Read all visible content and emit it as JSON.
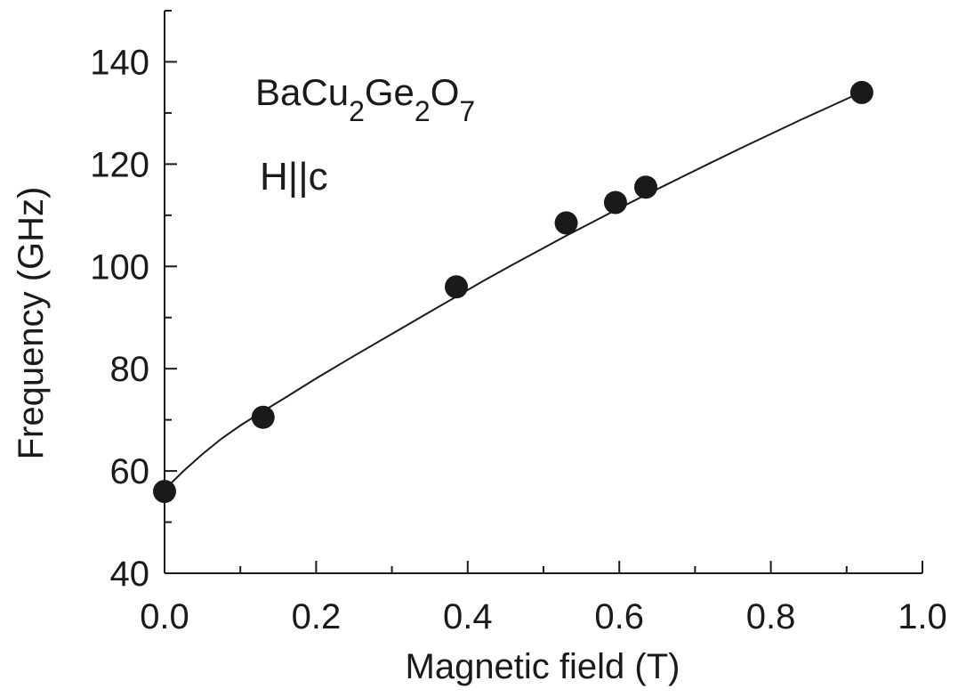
{
  "chart_data": {
    "type": "scatter",
    "xlabel": "Magnetic field (T)",
    "ylabel": "Frequency (GHz)",
    "xlim": [
      0.0,
      1.0
    ],
    "ylim": [
      40,
      150
    ],
    "x_ticks": [
      "0.0",
      "0.2",
      "0.4",
      "0.6",
      "0.8",
      "1.0"
    ],
    "x_tick_values": [
      0.0,
      0.2,
      0.4,
      0.6,
      0.8,
      1.0
    ],
    "y_ticks": [
      "40",
      "60",
      "80",
      "100",
      "120",
      "140"
    ],
    "y_tick_values": [
      40,
      60,
      80,
      100,
      120,
      140
    ],
    "grid": false,
    "series": [
      {
        "marker": "filled-circle",
        "x": [
          0.0,
          0.13,
          0.385,
          0.53,
          0.595,
          0.635,
          0.92
        ],
        "y": [
          56,
          70.5,
          96,
          108.5,
          112.5,
          115.5,
          134
        ]
      }
    ],
    "fit_curve": {
      "x": [
        0.0,
        0.01,
        0.025,
        0.05,
        0.075,
        0.1,
        0.13,
        0.16,
        0.2,
        0.25,
        0.3,
        0.35,
        0.385,
        0.42,
        0.46,
        0.5,
        0.53,
        0.56,
        0.595,
        0.635,
        0.68,
        0.72,
        0.76,
        0.8,
        0.84,
        0.88,
        0.92
      ],
      "y": [
        56,
        57.8,
        60.0,
        63.3,
        66.3,
        68.9,
        71.7,
        74.4,
        78.1,
        82.5,
        86.8,
        91.1,
        94.1,
        97.1,
        100.4,
        103.6,
        106.0,
        108.3,
        111.0,
        114.0,
        117.3,
        120.2,
        123.1,
        125.9,
        128.7,
        131.4,
        134.1
      ]
    },
    "annotations": {
      "compound": {
        "parts": [
          {
            "text": "BaCu",
            "sub": false
          },
          {
            "text": "2",
            "sub": true
          },
          {
            "text": "Ge",
            "sub": false
          },
          {
            "text": "2",
            "sub": true
          },
          {
            "text": "O",
            "sub": false
          },
          {
            "text": "7",
            "sub": true
          }
        ]
      },
      "orientation": "H||c"
    },
    "colors": {
      "axis": "#1a1a1a",
      "marker": "#1a1a1a",
      "curve": "#1a1a1a",
      "background": "#ffffff"
    }
  }
}
